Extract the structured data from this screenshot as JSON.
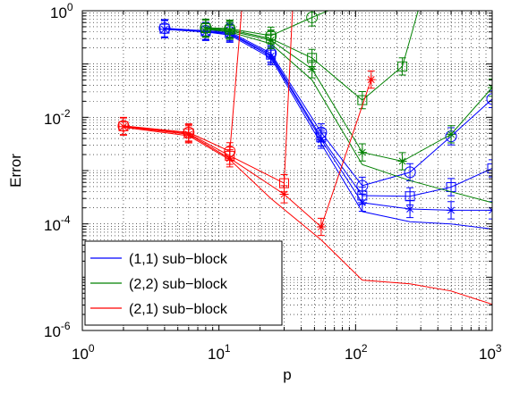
{
  "chart_data": {
    "type": "line",
    "xlabel": "p",
    "ylabel": "Error",
    "x_scale": "log",
    "y_scale": "log",
    "xlim": [
      1,
      1000
    ],
    "ylim": [
      1e-06,
      1
    ],
    "grid": "dotted, major and minor",
    "legend_placement": "bottom-left",
    "x_ticks": [
      {
        "base": "10",
        "exp": "0"
      },
      {
        "base": "10",
        "exp": "1"
      },
      {
        "base": "10",
        "exp": "2"
      },
      {
        "base": "10",
        "exp": "3"
      }
    ],
    "y_ticks": [
      {
        "base": "10",
        "exp": "0"
      },
      {
        "base": "10",
        "exp": "-2"
      },
      {
        "base": "10",
        "exp": "-4"
      },
      {
        "base": "10",
        "exp": "-6"
      }
    ],
    "legend": [
      {
        "label": "(1,1) sub−block",
        "color": "#0000ff"
      },
      {
        "label": "(2,2) sub−block",
        "color": "#008000"
      },
      {
        "label": "(2,1) sub−block",
        "color": "#ff0000"
      }
    ],
    "series": [
      {
        "group": 0,
        "marker": "none",
        "x": [
          4,
          8,
          12,
          24,
          56,
          112,
          250,
          500,
          1000
        ],
        "y": [
          0.45,
          0.4,
          0.35,
          0.13,
          0.0032,
          0.00017,
          0.00011,
          0.0001,
          8e-05
        ]
      },
      {
        "group": 0,
        "marker": "asterisk",
        "x": [
          4,
          8,
          12,
          24,
          56,
          112,
          250,
          500,
          1000
        ],
        "y": [
          0.45,
          0.4,
          0.37,
          0.14,
          0.0038,
          0.00025,
          0.00019,
          0.00018,
          0.00018
        ]
      },
      {
        "group": 0,
        "marker": "square",
        "x": [
          4,
          8,
          12,
          24,
          56,
          112,
          250,
          500,
          1000
        ],
        "y": [
          0.46,
          0.41,
          0.38,
          0.15,
          0.0042,
          0.00034,
          0.00033,
          0.00049,
          0.0011
        ]
      },
      {
        "group": 0,
        "marker": "circle",
        "x": [
          4,
          8,
          12,
          24,
          56,
          112,
          250,
          500,
          1000
        ],
        "y": [
          0.47,
          0.42,
          0.4,
          0.16,
          0.0052,
          0.00052,
          0.00093,
          0.0044,
          0.022
        ]
      },
      {
        "group": 1,
        "marker": "none",
        "x": [
          8,
          12,
          24,
          48,
          112,
          250,
          500,
          1000
        ],
        "y": [
          0.45,
          0.4,
          0.24,
          0.05,
          0.0013,
          0.00065,
          0.0004,
          0.00025
        ]
      },
      {
        "group": 1,
        "marker": "asterisk",
        "x": [
          8,
          12,
          24,
          48,
          112,
          220,
          500,
          1000
        ],
        "y": [
          0.46,
          0.42,
          0.28,
          0.08,
          0.0022,
          0.0015,
          0.0048,
          0.036
        ]
      },
      {
        "group": 1,
        "marker": "square",
        "x": [
          8,
          12,
          24,
          48,
          112,
          220,
          310
        ],
        "y": [
          0.47,
          0.44,
          0.3,
          0.13,
          0.021,
          0.09,
          2.0
        ]
      },
      {
        "group": 1,
        "marker": "circle",
        "x": [
          8,
          12,
          24,
          48,
          120
        ],
        "y": [
          0.48,
          0.46,
          0.34,
          0.75,
          2.0
        ]
      },
      {
        "group": 2,
        "marker": "none",
        "x": [
          2,
          6,
          12,
          24,
          56,
          112,
          250,
          500,
          1000
        ],
        "y": [
          0.0065,
          0.0045,
          0.0016,
          0.0003,
          5e-05,
          8.8e-06,
          7.5e-06,
          5.5e-06,
          3.1e-06
        ]
      },
      {
        "group": 2,
        "marker": "asterisk",
        "x": [
          2,
          6,
          12,
          30,
          56,
          130
        ],
        "y": [
          0.0067,
          0.0048,
          0.0017,
          0.00036,
          8.8e-05,
          0.051
        ]
      },
      {
        "group": 2,
        "marker": "square",
        "x": [
          2,
          6,
          12,
          30,
          35
        ],
        "y": [
          0.0068,
          0.005,
          0.0019,
          0.00058,
          2.0
        ]
      },
      {
        "group": 2,
        "marker": "circle",
        "x": [
          2,
          6,
          12,
          15
        ],
        "y": [
          0.0069,
          0.0052,
          0.0023,
          2.0
        ]
      }
    ]
  }
}
